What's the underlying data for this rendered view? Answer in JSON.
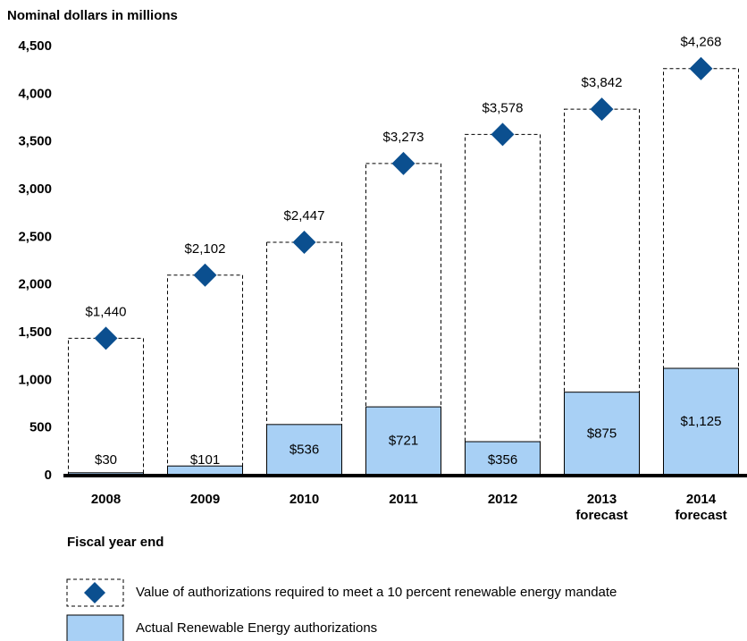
{
  "chart_data": {
    "type": "bar",
    "title": "Nominal dollars in millions",
    "x_label": "Fiscal year end",
    "categories": [
      "2008",
      "2009",
      "2010",
      "2011",
      "2012",
      "2013 forecast",
      "2014 forecast"
    ],
    "series": [
      {
        "name": "Value of authorizations required to meet a 10 percent renewable energy mandate",
        "color": "#0b4f8f",
        "values": [
          1440,
          2102,
          2447,
          3273,
          3578,
          3842,
          4268
        ],
        "value_labels": [
          "$1,440",
          "$2,102",
          "$2,447",
          "$3,273",
          "$3,578",
          "$3,842",
          "$4,268"
        ]
      },
      {
        "name": "Actual Renewable Energy authorizations",
        "color": "#a8d0f5",
        "values": [
          30,
          101,
          536,
          721,
          356,
          875,
          1125
        ],
        "value_labels": [
          "$30",
          "$101",
          "$536",
          "$721",
          "$356",
          "$875",
          "$1,125"
        ]
      }
    ],
    "ylim": [
      0,
      4500
    ],
    "yticks": [
      0,
      500,
      {
        "value": 1000,
        "label": "1,000"
      },
      {
        "value": 1500,
        "label": "1,500"
      },
      {
        "value": 2000,
        "label": "2,000"
      },
      {
        "value": 2500,
        "label": "2,500"
      },
      {
        "value": 3000,
        "label": "3,000"
      },
      {
        "value": 3500,
        "label": "3,500"
      },
      {
        "value": 4000,
        "label": "4,000"
      },
      {
        "value": 4500,
        "label": "4,500"
      }
    ]
  }
}
